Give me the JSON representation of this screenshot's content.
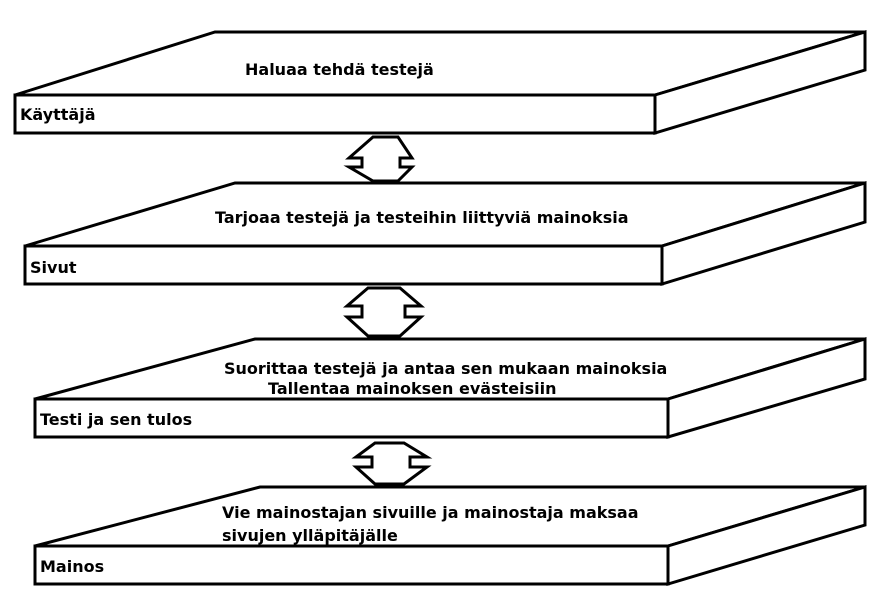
{
  "layers": [
    {
      "name": "Käyttäjä",
      "description": [
        "Haluaa tehdä testejä"
      ]
    },
    {
      "name": "Sivut",
      "description": [
        "Tarjoaa testejä ja testeihin liittyviä mainoksia"
      ]
    },
    {
      "name": "Testi ja sen tulos",
      "description": [
        "Suorittaa testejä ja antaa sen mukaan mainoksia",
        "Tallentaa mainoksen evästeisiin"
      ]
    },
    {
      "name": "Mainos",
      "description": [
        "Vie mainostajan sivuille ja mainostaja maksaa",
        "sivujen ylläpitäjälle"
      ]
    }
  ],
  "colors": {
    "line": "#000000",
    "fill": "#ffffff"
  }
}
